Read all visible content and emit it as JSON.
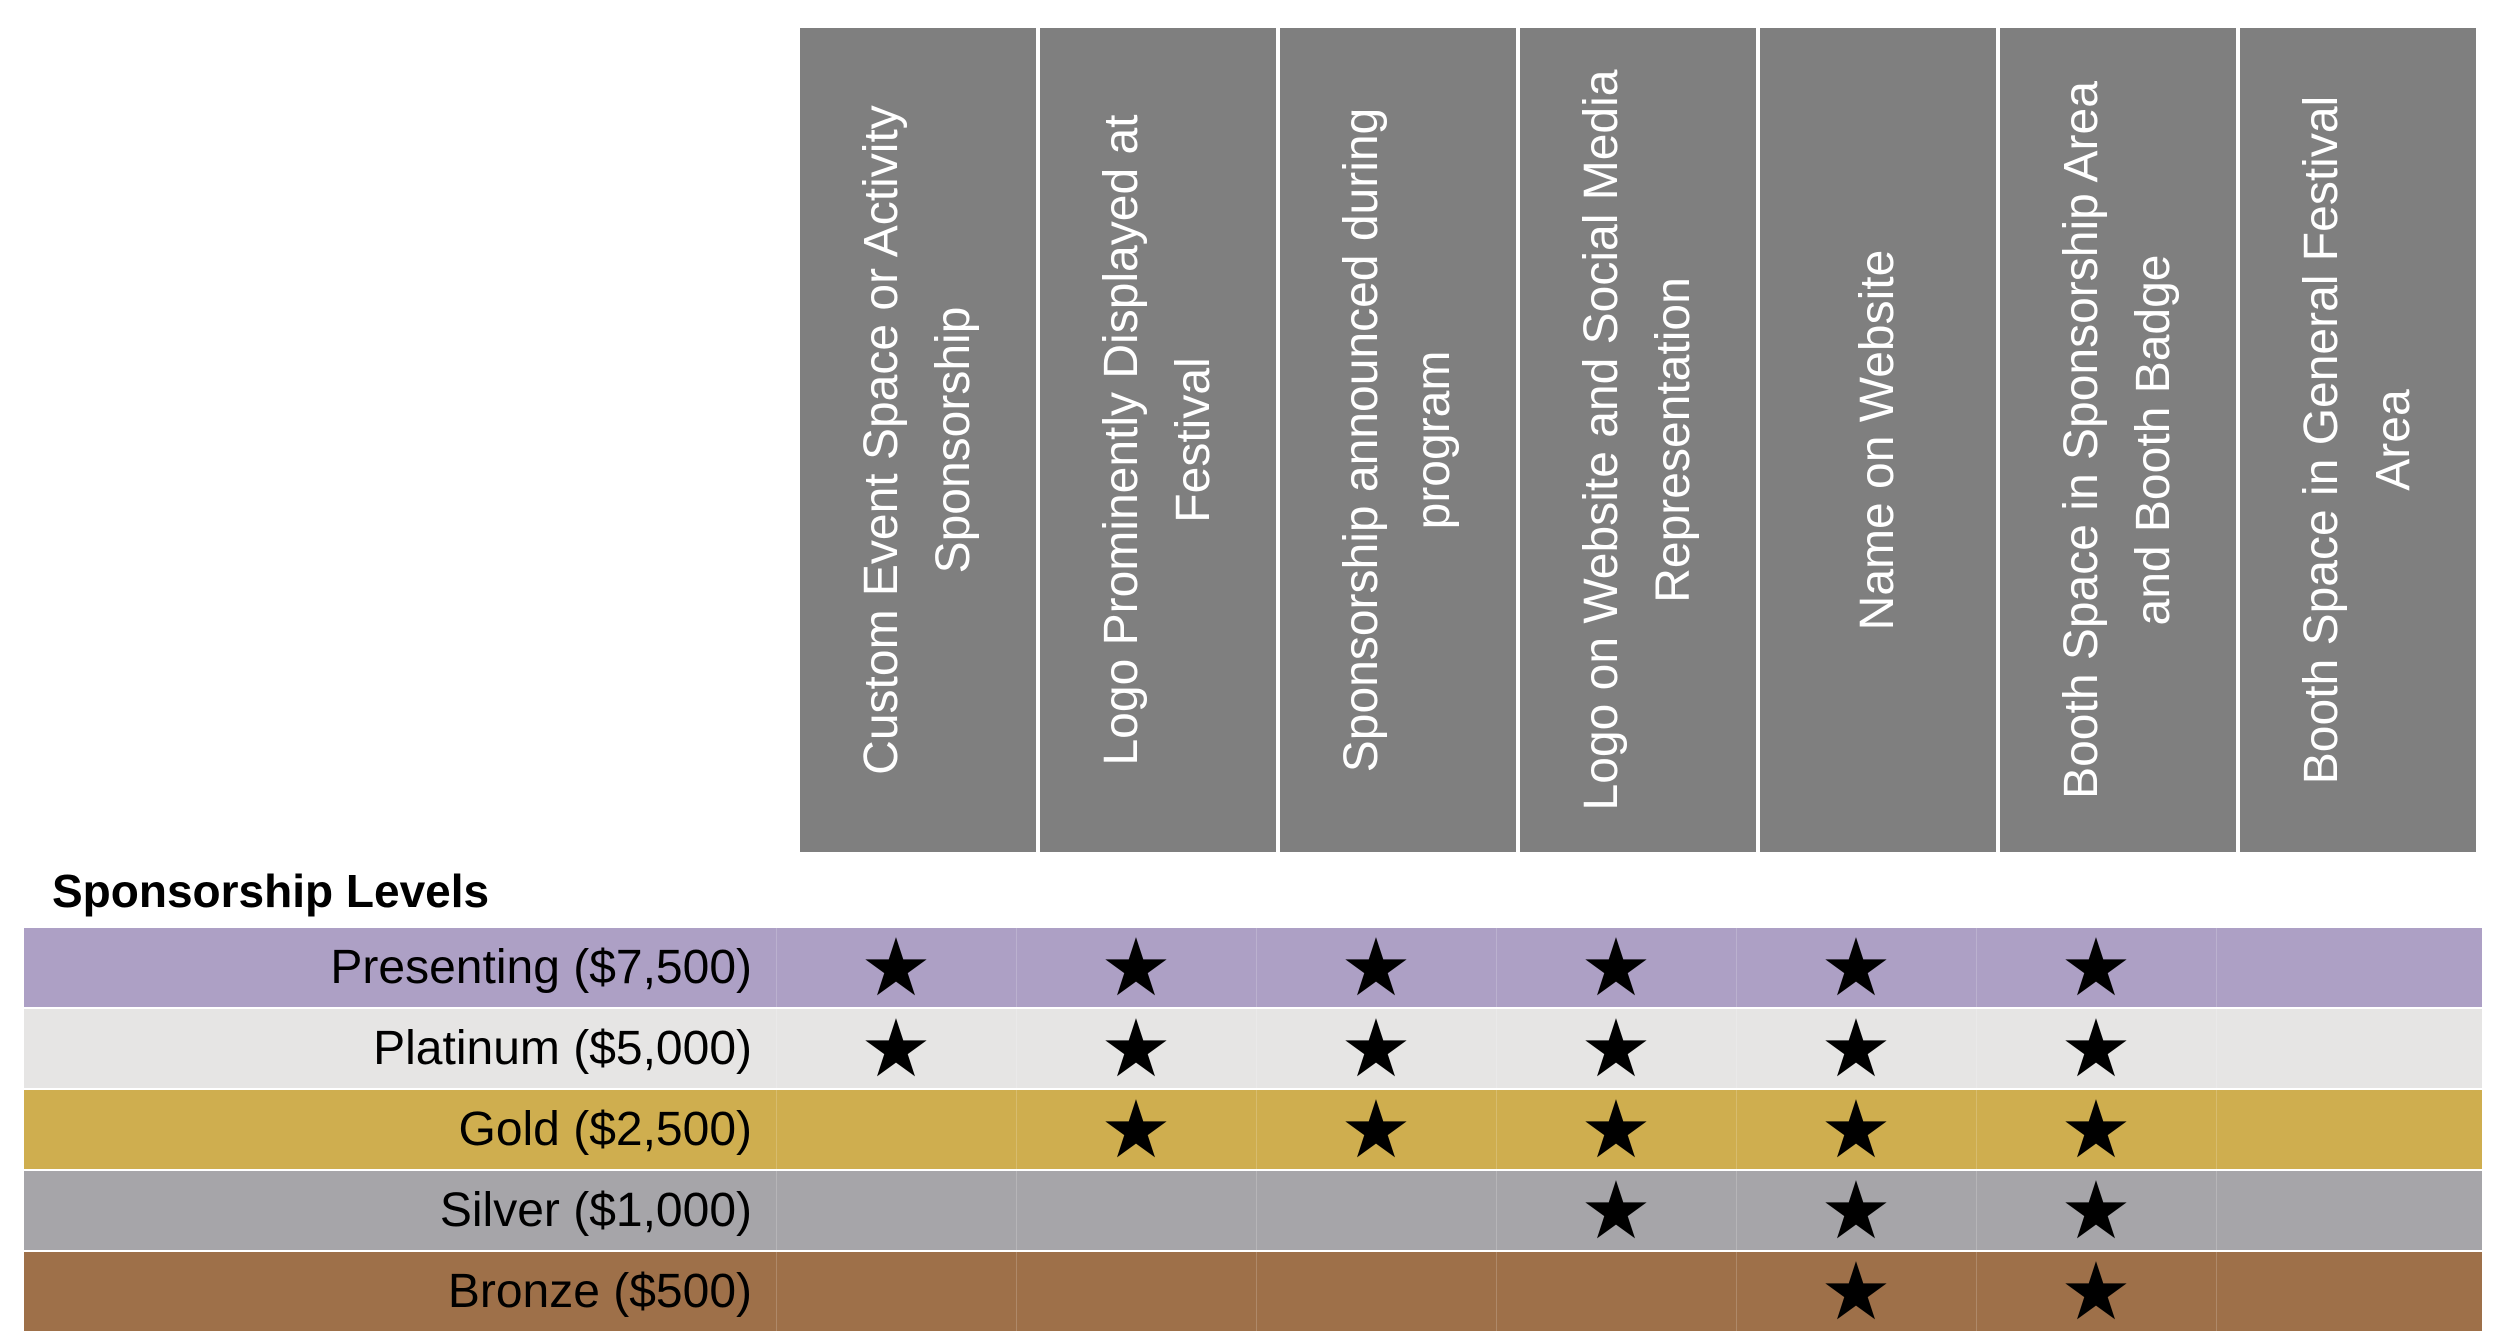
{
  "benefits": [
    "Custom Event Space or Activity Sponsorship",
    "Logo Prominently Displayed at Festival",
    "Sponsorship announced during program",
    "Logo on Website and Social Media Representation",
    "Name on Website",
    "Booth Space in Sponsorship Area and Booth Badge",
    "Booth Space in General Festival Area"
  ],
  "levels_title": "Sponsorship Levels",
  "star_glyph": "★",
  "colors": {
    "header": "#7f7f7f",
    "presenting": "#ada0c5",
    "platinum": "#e6e5e4",
    "gold": "#cfae4f",
    "silver": "#a6a5a9",
    "bronze": "#9e7049"
  },
  "levels": [
    {
      "label": "Presenting ($7,500)",
      "color": "#ada0c5",
      "included": [
        true,
        true,
        true,
        true,
        true,
        true,
        false
      ]
    },
    {
      "label": "Platinum ($5,000)",
      "color": "#e6e5e4",
      "included": [
        true,
        true,
        true,
        true,
        true,
        true,
        false
      ]
    },
    {
      "label": "Gold ($2,500)",
      "color": "#cfae4f",
      "included": [
        false,
        true,
        true,
        true,
        true,
        true,
        false
      ]
    },
    {
      "label": "Silver ($1,000)",
      "color": "#a6a5a9",
      "included": [
        false,
        false,
        false,
        true,
        true,
        true,
        false
      ]
    },
    {
      "label": "Bronze ($500)",
      "color": "#9e7049",
      "included": [
        false,
        false,
        false,
        false,
        true,
        true,
        false
      ]
    }
  ]
}
